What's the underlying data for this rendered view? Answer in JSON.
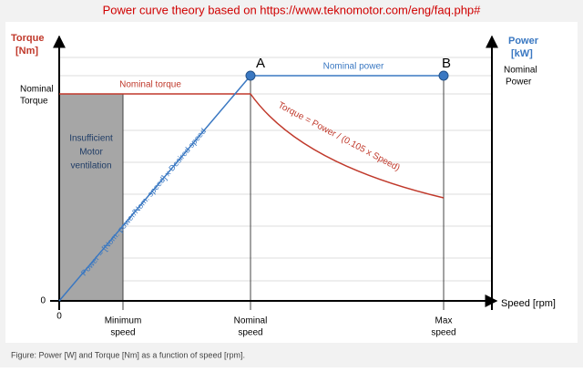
{
  "title": "Power curve theory based on https://www.teknomotor.com/eng/faq.php#",
  "left_axis": {
    "label": [
      "Torque",
      "[Nm]"
    ],
    "nominal": [
      "Nominal",
      "Torque"
    ],
    "zero": "0"
  },
  "right_axis": {
    "label": [
      "Power",
      "[kW]"
    ],
    "nominal": [
      "Nominal",
      "Power"
    ]
  },
  "x_axis": {
    "label": "Speed [rpm]",
    "zero": "0",
    "minimum": [
      "Minimum",
      "speed"
    ],
    "nominal": [
      "Nominal",
      "speed"
    ],
    "max": [
      "Max",
      "speed"
    ]
  },
  "region": [
    "Insufficient",
    "Motor",
    "ventilation"
  ],
  "points": {
    "a": "A",
    "b": "B"
  },
  "curves": {
    "nominal_torque": "Nominal torque",
    "nominal_power": "Nominal power",
    "torque_formula": "Torque = Power / (0.105 x Speed)",
    "power_formula": "Power = [Nom. power/Nom. speed] x Desired speed"
  },
  "caption": "Figure: Power [W] and Torque [Nm] as a function of speed [rpm]."
}
